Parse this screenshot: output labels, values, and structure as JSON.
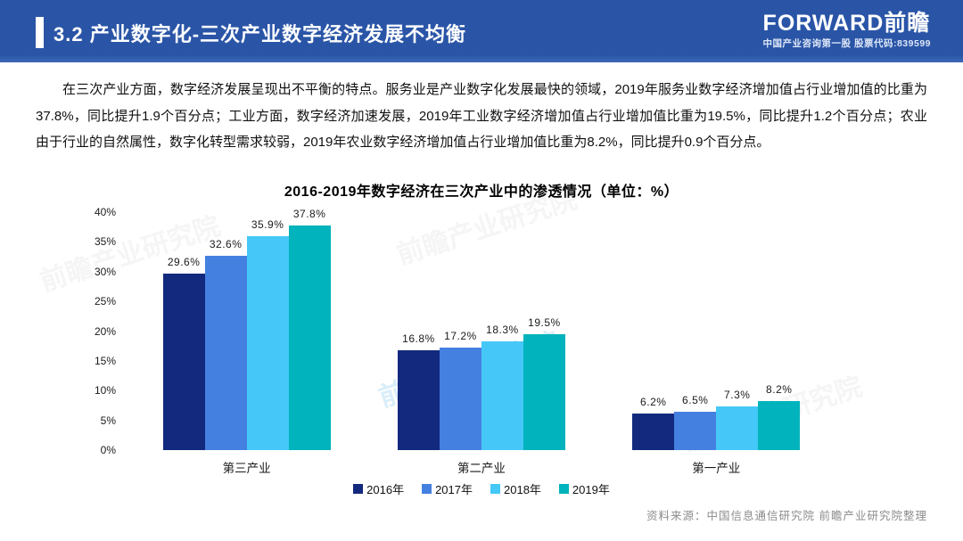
{
  "header": {
    "title": "3.2 产业数字化-三次产业数字经济发展不均衡",
    "logo_brand": "FORWARD前瞻",
    "logo_tagline": "中国产业咨询第一股  股票代码:839599",
    "bg_color": "#2a55a7"
  },
  "body": {
    "paragraph": "在三次产业方面，数字经济发展呈现出不平衡的特点。服务业是产业数字化发展最快的领域，2019年服务业数字经济增加值占行业增加值的比重为37.8%，同比提升1.9个百分点；工业方面，数字经济加速发展，2019年工业数字经济增加值占行业增加值比重为19.5%，同比提升1.2个百分点；农业由于行业的自然属性，数字化转型需求较弱，2019年农业数字经济增加值占行业增加值比重为8.2%，同比提升0.9个百分点。"
  },
  "chart_data": {
    "type": "bar",
    "title": "2016-2019年数字经济在三次产业中的渗透情况（单位：%）",
    "categories": [
      "第三产业",
      "第二产业",
      "第一产业"
    ],
    "series": [
      {
        "name": "2016年",
        "color": "#12297d",
        "values": [
          29.6,
          16.8,
          6.2
        ]
      },
      {
        "name": "2017年",
        "color": "#4480e0",
        "values": [
          32.6,
          17.2,
          6.5
        ]
      },
      {
        "name": "2018年",
        "color": "#45c8f7",
        "values": [
          35.9,
          18.3,
          7.3
        ]
      },
      {
        "name": "2019年",
        "color": "#00b3bc",
        "values": [
          37.8,
          19.5,
          8.2
        ]
      }
    ],
    "xlabel": "",
    "ylabel": "",
    "ylim": [
      0,
      40
    ],
    "ytick_step": 5,
    "ytick_suffix": "%",
    "value_label_suffix": "%",
    "grid": false,
    "legend_position": "bottom",
    "data_labels": true
  },
  "footer": {
    "source": "资料来源：中国信息通信研究院  前瞻产业研究院整理"
  },
  "watermark": {
    "text": "前瞻产业研究院"
  }
}
